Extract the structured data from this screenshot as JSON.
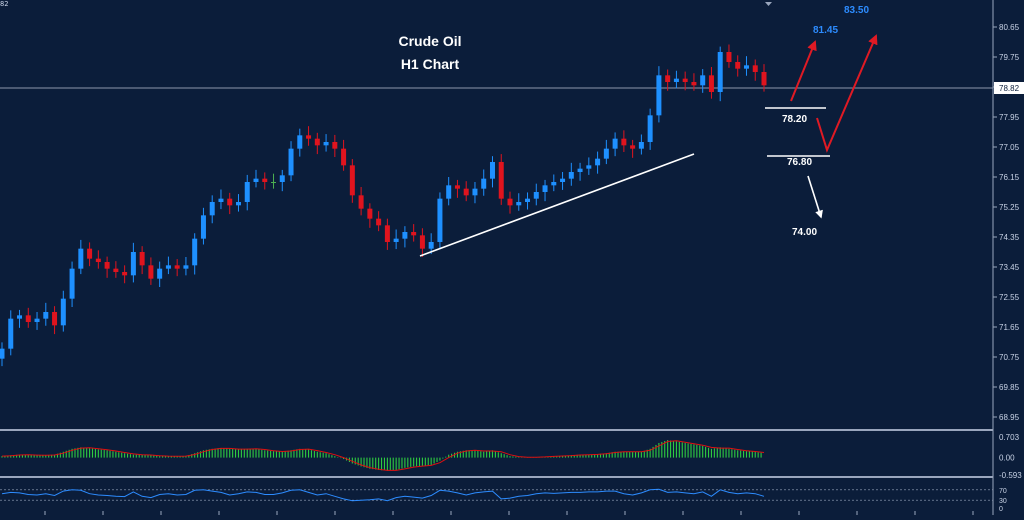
{
  "header": {
    "corner_tag": "82",
    "title_line1": "Crude Oil",
    "title_line2": "H1 Chart"
  },
  "colors": {
    "background": "#0b1d3a",
    "bull_candle": "#1e90ff",
    "bear_candle": "#e0141e",
    "neutral_candle": "#4caf50",
    "macd_bars": "#2ecc40",
    "macd_signal": "#e01010",
    "rsi_line": "#2d8cff",
    "target_blue": "#2d8cff",
    "axis_text": "#c9d3e6",
    "annotation_white": "#ffffff",
    "arrow_red": "#e01a24"
  },
  "chart_data": {
    "type": "candlestick",
    "symbol": "Crude Oil",
    "timeframe": "H1",
    "price_axis": {
      "ticks": [
        "80.65",
        "79.75",
        "78.85",
        "77.95",
        "77.05",
        "76.15",
        "75.25",
        "74.35",
        "73.45",
        "72.55",
        "71.65",
        "70.75",
        "69.85",
        "68.95"
      ],
      "range": [
        68.5,
        81.0
      ],
      "current_price": "78.82"
    },
    "closes": [
      71.0,
      71.9,
      72.0,
      71.8,
      71.9,
      72.1,
      71.7,
      72.5,
      73.4,
      74.0,
      73.7,
      73.6,
      73.4,
      73.3,
      73.2,
      73.9,
      73.5,
      73.1,
      73.4,
      73.5,
      73.4,
      73.5,
      74.3,
      75.0,
      75.4,
      75.5,
      75.3,
      75.4,
      76.0,
      76.1,
      76.0,
      76.0,
      76.2,
      77.0,
      77.4,
      77.3,
      77.1,
      77.2,
      77.0,
      76.5,
      75.6,
      75.2,
      74.9,
      74.7,
      74.2,
      74.3,
      74.5,
      74.4,
      74.0,
      74.2,
      75.5,
      75.9,
      75.8,
      75.6,
      75.8,
      76.1,
      76.6,
      75.5,
      75.3,
      75.4,
      75.5,
      75.7,
      75.9,
      76.0,
      76.1,
      76.3,
      76.4,
      76.5,
      76.7,
      77.0,
      77.3,
      77.1,
      77.0,
      77.2,
      78.0,
      79.2,
      79.0,
      79.1,
      79.0,
      78.9,
      79.2,
      78.7,
      79.9,
      79.6,
      79.4,
      79.5,
      79.3,
      78.9
    ],
    "targets": [
      {
        "label": "83.50",
        "price": 83.5,
        "style": "blue"
      },
      {
        "label": "81.45",
        "price": 81.45,
        "style": "blue"
      },
      {
        "label": "78.20",
        "price": 78.2,
        "style": "white"
      },
      {
        "label": "76.80",
        "price": 76.8,
        "style": "white"
      },
      {
        "label": "74.00",
        "price": 74.0,
        "style": "white"
      }
    ],
    "trendline": {
      "from_index": 50,
      "to_index": 83,
      "description": "ascending support"
    },
    "macd": {
      "ticks": [
        "0.703",
        "0.00",
        "-0.593"
      ],
      "range": [
        -0.593,
        0.703
      ],
      "values": [
        0.05,
        0.08,
        0.1,
        0.09,
        0.08,
        0.08,
        0.1,
        0.2,
        0.3,
        0.35,
        0.32,
        0.28,
        0.25,
        0.2,
        0.15,
        0.1,
        0.1,
        0.08,
        0.05,
        0.05,
        0.04,
        0.06,
        0.15,
        0.25,
        0.3,
        0.33,
        0.3,
        0.28,
        0.3,
        0.3,
        0.25,
        0.22,
        0.2,
        0.25,
        0.3,
        0.28,
        0.2,
        0.15,
        0.05,
        -0.05,
        -0.2,
        -0.3,
        -0.38,
        -0.42,
        -0.45,
        -0.42,
        -0.35,
        -0.3,
        -0.28,
        -0.25,
        -0.1,
        0.1,
        0.2,
        0.25,
        0.25,
        0.2,
        0.25,
        0.15,
        0.05,
        0.02,
        0.01,
        0.02,
        0.03,
        0.05,
        0.06,
        0.08,
        0.1,
        0.1,
        0.12,
        0.15,
        0.2,
        0.2,
        0.2,
        0.2,
        0.3,
        0.5,
        0.6,
        0.55,
        0.5,
        0.45,
        0.4,
        0.3,
        0.35,
        0.3,
        0.25,
        0.22,
        0.2,
        0.15
      ]
    },
    "rsi": {
      "ticks": [
        "70",
        "30",
        "0"
      ],
      "range": [
        0,
        100
      ],
      "values": [
        55,
        60,
        58,
        52,
        50,
        55,
        48,
        65,
        70,
        68,
        55,
        50,
        48,
        45,
        44,
        62,
        45,
        40,
        52,
        55,
        50,
        52,
        68,
        70,
        65,
        60,
        50,
        55,
        62,
        60,
        52,
        52,
        58,
        68,
        70,
        60,
        50,
        55,
        45,
        35,
        28,
        30,
        32,
        35,
        28,
        40,
        45,
        42,
        38,
        48,
        68,
        65,
        58,
        50,
        58,
        62,
        65,
        35,
        38,
        45,
        48,
        55,
        58,
        56,
        58,
        60,
        60,
        62,
        62,
        65,
        65,
        55,
        50,
        58,
        70,
        72,
        60,
        62,
        58,
        55,
        62,
        45,
        70,
        60,
        55,
        58,
        55,
        45
      ]
    }
  }
}
